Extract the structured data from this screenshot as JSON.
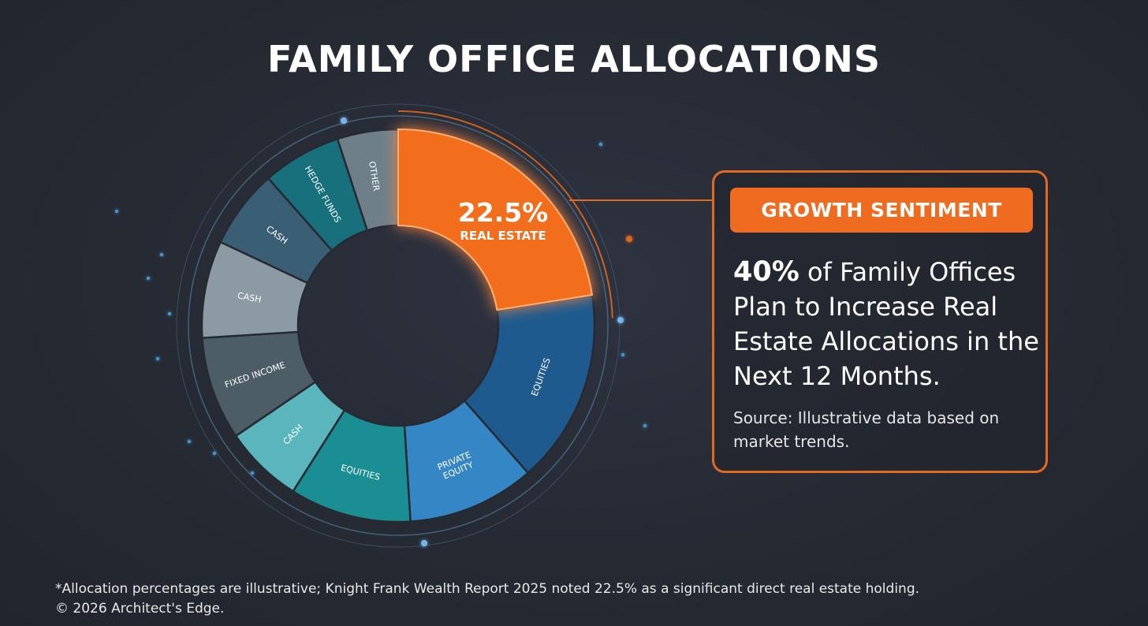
{
  "title": "FAMILY OFFICE ALLOCATIONS",
  "chart_data": {
    "type": "donut",
    "title": "FAMILY OFFICE ALLOCATIONS",
    "unit": "%",
    "highlight": {
      "value_label": "22.5%",
      "category": "REAL ESTATE"
    },
    "segments": [
      {
        "label": "REAL ESTATE",
        "value": 22.5,
        "color": "#f26d1d",
        "highlight": true
      },
      {
        "label": "EQUITIES",
        "value": 16.0,
        "color": "#1e5a8e"
      },
      {
        "label": "PRIVATE EQUITY",
        "value": 10.5,
        "color": "#3486c4"
      },
      {
        "label": "EQUITIES",
        "value": 10.0,
        "color": "#1a8e92"
      },
      {
        "label": "CASH",
        "value": 6.5,
        "color": "#5ab6bc"
      },
      {
        "label": "FIXED INCOME",
        "value": 8.5,
        "color": "#4d5d66"
      },
      {
        "label": "CASH",
        "value": 8.0,
        "color": "#8c9aa3"
      },
      {
        "label": "CASH",
        "value": 6.5,
        "color": "#3a5f75"
      },
      {
        "label": "HEDGE FUNDS",
        "value": 6.5,
        "color": "#17707c"
      },
      {
        "label": "OTHER",
        "value": 5.0,
        "color": "#6e7f8a"
      }
    ]
  },
  "callout": {
    "badge": "GROWTH SENTIMENT",
    "stat": "40%",
    "text": " of Family Offices Plan to Increase Real Estate Allocations in the Next 12 Months.",
    "source": "Source: Illustrative data based on market trends."
  },
  "footnote": {
    "line1": "*Allocation percentages are illustrative; Knight Frank Wealth Report 2025 noted 22.5% as a significant direct real estate holding.",
    "line2": "© 2026 Architect's Edge."
  },
  "colors": {
    "accent": "#ef6b1f",
    "background": "#262a33"
  }
}
